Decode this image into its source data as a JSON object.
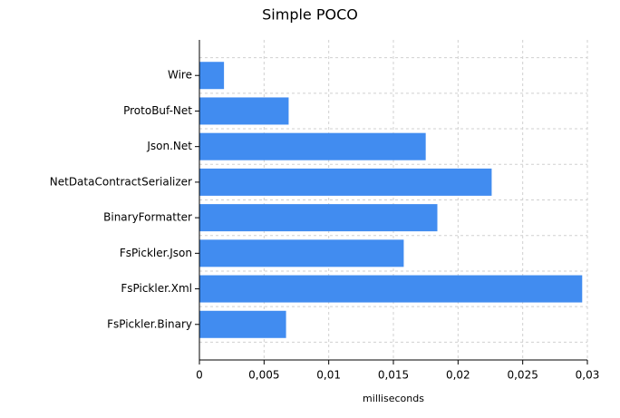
{
  "chart_data": {
    "type": "bar",
    "orientation": "horizontal",
    "title": "Simple POCO",
    "x_label": "milliseconds",
    "categories": [
      "Wire",
      "ProtoBuf-Net",
      "Json.Net",
      "NetDataContractSerializer",
      "BinaryFormatter",
      "FsPickler.Json",
      "FsPickler.Xml",
      "FsPickler.Binary"
    ],
    "values": [
      0.0019,
      0.0069,
      0.0175,
      0.0226,
      0.0184,
      0.0158,
      0.0296,
      0.0067
    ],
    "color": "#418cf0",
    "xlim": [
      0,
      0.03
    ],
    "xticks": [
      0,
      {
        "value": 0.005,
        "label": "0,005"
      },
      {
        "value": 0.01,
        "label": "0,01"
      },
      {
        "value": 0.015,
        "label": "0,015"
      },
      {
        "value": 0.02,
        "label": "0,02"
      },
      {
        "value": 0.025,
        "label": "0,025"
      },
      {
        "value": 0.03,
        "label": "0,03"
      }
    ],
    "grid": true
  }
}
